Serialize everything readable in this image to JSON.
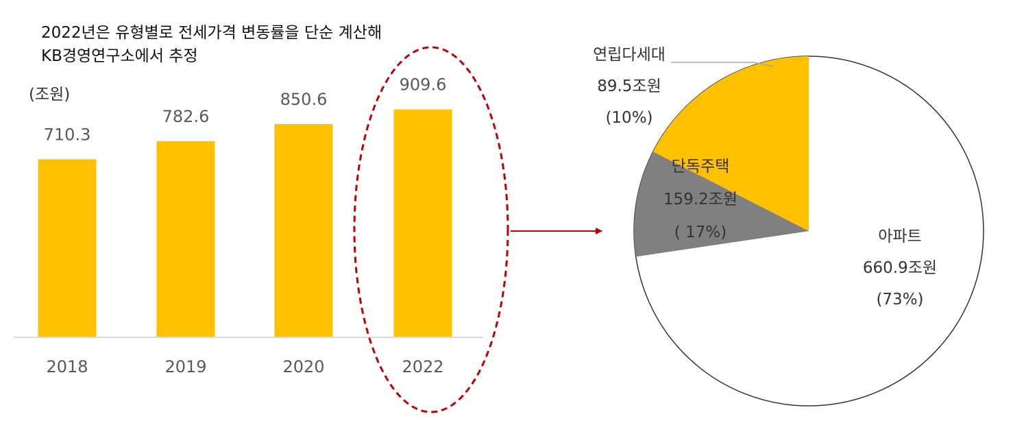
{
  "note": {
    "line1": "2022년은 유형별로 전세가격 변동률을 단순 계산해",
    "line2": "KB경영연구소에서 추정"
  },
  "unit_label": "(조원)",
  "colors": {
    "bar": "#FFC000",
    "apartment": "#FFFFFF",
    "detached": "#FFC000",
    "multi": "#808080",
    "highlight": "#C00000",
    "axis": "#D9D9D9"
  },
  "chart_data": [
    {
      "type": "bar",
      "categories": [
        "2018",
        "2019",
        "2020",
        "2022"
      ],
      "values": [
        710.3,
        782.6,
        850.6,
        909.6
      ],
      "value_labels": [
        "710.3",
        "782.6",
        "850.6",
        "909.6"
      ],
      "unit": "(조원)",
      "ylim": [
        0,
        1000
      ],
      "grid": false,
      "legend": "none",
      "highlight_category": "2022"
    },
    {
      "type": "pie",
      "slices": [
        {
          "name": "아파트",
          "value": 660.9,
          "value_label": "660.9조원",
          "percent_label": "(73%)"
        },
        {
          "name": "연립다세대",
          "value": 89.5,
          "value_label": "89.5조원",
          "percent_label": "(10%)"
        },
        {
          "name": "단독주택",
          "value": 159.2,
          "value_label": "159.2조원",
          "percent_label": "( 17%)"
        }
      ],
      "start": "12 o'clock",
      "direction": "clockwise",
      "legend": "none"
    }
  ]
}
